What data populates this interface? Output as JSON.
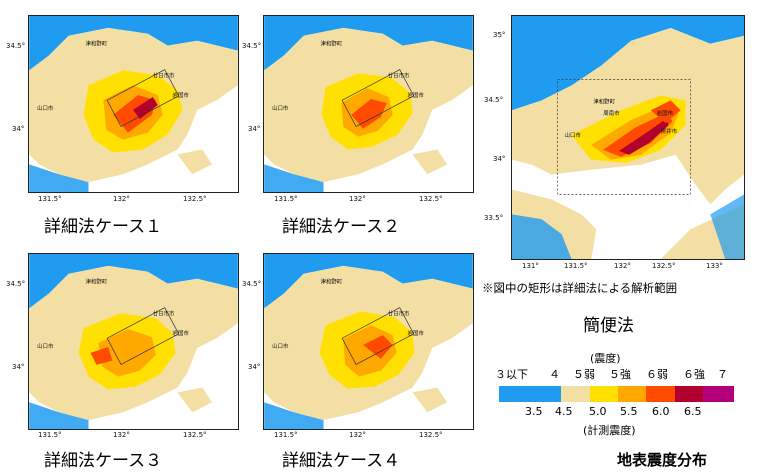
{
  "maps": [
    {
      "caption": "詳細法ケース１",
      "lat_ticks": [
        "34.5°",
        "34°"
      ],
      "lon_ticks": [
        "131.5°",
        "132°",
        "132.5°"
      ]
    },
    {
      "caption": "詳細法ケース２",
      "lat_ticks": [
        "34.5°",
        "34°"
      ],
      "lon_ticks": [
        "131.5°",
        "132°",
        "132.5°"
      ]
    },
    {
      "caption": "詳細法ケース３",
      "lat_ticks": [
        "34.5°",
        "34°"
      ],
      "lon_ticks": [
        "131.5°",
        "132°",
        "132.5°"
      ]
    },
    {
      "caption": "詳細法ケース４",
      "lat_ticks": [
        "34.5°",
        "34°"
      ],
      "lon_ticks": [
        "131.5°",
        "132°",
        "132.5°"
      ]
    }
  ],
  "simple_map": {
    "caption": "簡便法",
    "note": "※図中の矩形は詳細法による解析範囲",
    "lat_ticks": [
      "35°",
      "34.5°",
      "34°",
      "33.5°"
    ],
    "lon_ticks": [
      "131°",
      "131.5°",
      "132°",
      "132.5°",
      "133°"
    ]
  },
  "place_names": {
    "city1": "廿日市市",
    "city2": "山口市",
    "city3": "津和野町",
    "city4": "岩国市",
    "city5": "周南市",
    "city6": "柳井市"
  },
  "legend": {
    "title_top": "(震度)",
    "title_bottom": "(計測震度)",
    "intensity_labels": [
      "３以下",
      "４",
      "５弱",
      "５強",
      "６弱",
      "６強",
      "７"
    ],
    "value_labels": [
      "3.5",
      "4.5",
      "5.0",
      "5.5",
      "6.0",
      "6.5"
    ],
    "colors": [
      "#1f9bf0",
      "#f3dfa3",
      "#ffe000",
      "#ffa800",
      "#ff4a00",
      "#b2002e",
      "#b3007a"
    ]
  },
  "figure_title": "地表震度分布"
}
